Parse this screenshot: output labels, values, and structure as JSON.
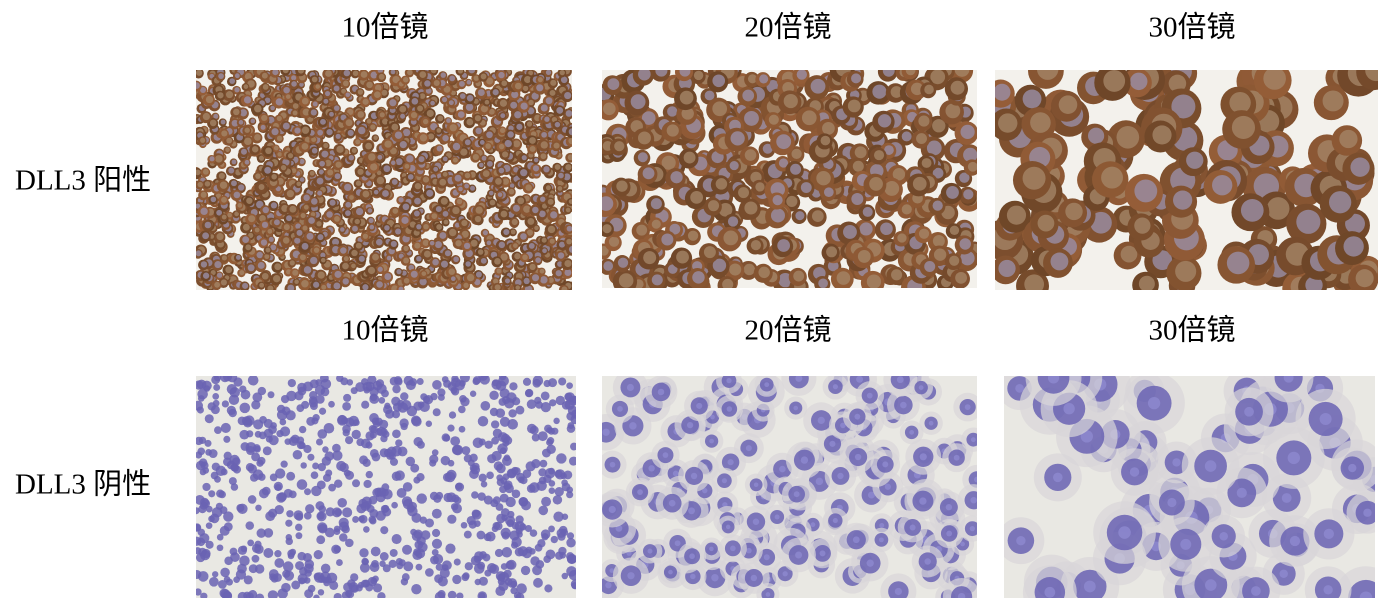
{
  "rows": [
    {
      "label": "DLL3 阳性",
      "headers": [
        "10倍镜",
        "20倍镜",
        "30倍镜"
      ]
    },
    {
      "label": "DLL3 阴性",
      "headers": [
        "10倍镜",
        "20倍镜",
        "30倍镜"
      ]
    }
  ]
}
